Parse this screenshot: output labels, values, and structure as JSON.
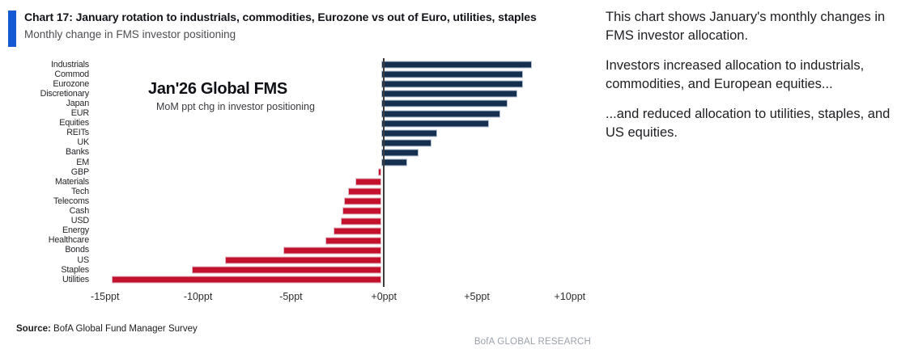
{
  "header": {
    "title": "Chart 17: January rotation to industrials, commodities, Eurozone vs out of Euro, utilities, staples",
    "subtitle": "Monthly change in FMS investor positioning",
    "accent_color": "#155ad2"
  },
  "annotation": {
    "title": "Jan'26 Global FMS",
    "subtitle": "MoM ppt chg in investor positioning"
  },
  "chart_data": {
    "type": "bar",
    "orientation": "horizontal",
    "title": "Jan'26 Global FMS",
    "subtitle": "MoM ppt chg in investor positioning",
    "xlabel": "",
    "ylabel": "",
    "unit": "ppt",
    "categories": [
      "Industrials",
      "Commod",
      "Eurozone",
      "Discretionary",
      "Japan",
      "EUR",
      "Equities",
      "REITs",
      "UK",
      "Banks",
      "EM",
      "GBP",
      "Materials",
      "Tech",
      "Telecoms",
      "Cash",
      "USD",
      "Energy",
      "Healthcare",
      "Bonds",
      "US",
      "Staples",
      "Utilities"
    ],
    "values": [
      8.1,
      7.6,
      7.6,
      7.3,
      6.8,
      6.4,
      5.8,
      3.0,
      2.7,
      2.0,
      1.4,
      -0.2,
      -1.4,
      -1.8,
      -2.0,
      -2.1,
      -2.2,
      -2.6,
      -3.0,
      -5.3,
      -8.4,
      -10.2,
      -14.5
    ],
    "xlim": [
      -15.6,
      11.4
    ],
    "ticks": [
      {
        "value": -15,
        "label": "-15ppt"
      },
      {
        "value": -10,
        "label": "-10ppt"
      },
      {
        "value": -5,
        "label": "-5ppt"
      },
      {
        "value": 0,
        "label": "+0ppt"
      },
      {
        "value": 5,
        "label": "+5ppt"
      },
      {
        "value": 10,
        "label": "+10ppt"
      }
    ],
    "positive_color": "#14304e",
    "negative_color": "#c4122e",
    "positive_edge_color": "#b3c0d3",
    "negative_edge_color": "#e0bac1",
    "axis_line_color": "#3c3c40",
    "grid": false,
    "legend": false
  },
  "commentary": {
    "paragraphs": [
      "This chart shows January's monthly changes in FMS investor allocation.",
      "Investors increased allocation to industrials, commodities, and European equities...",
      "...and reduced allocation to utilities, staples, and US equities."
    ]
  },
  "footer": {
    "source_label": "Source:",
    "source_text": " BofA Global Fund Manager Survey",
    "brand": "BofA GLOBAL RESEARCH"
  }
}
